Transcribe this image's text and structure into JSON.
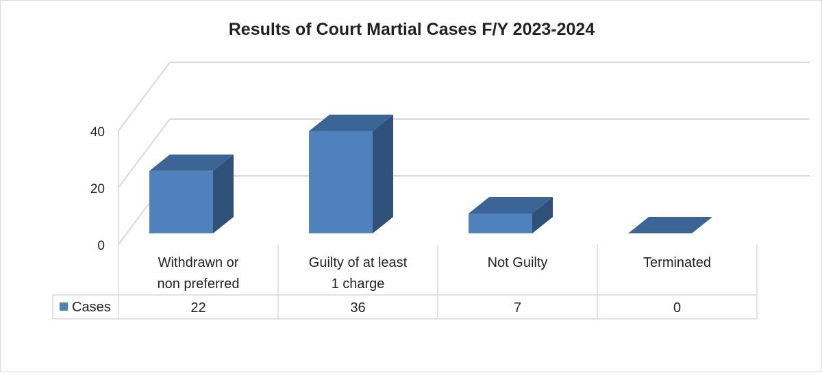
{
  "chart_data": {
    "type": "bar",
    "title": "Results of Court Martial Cases F/Y 2023-2024",
    "categories": [
      [
        "Withdrawn or",
        "non preferred"
      ],
      [
        "Guilty of at least",
        "1 charge"
      ],
      [
        "Not Guilty"
      ],
      [
        "Terminated"
      ]
    ],
    "series": [
      {
        "name": "Cases",
        "values": [
          22,
          36,
          7,
          0
        ]
      }
    ],
    "y_ticks": [
      0,
      20,
      40
    ],
    "ylim": [
      0,
      40
    ],
    "grid": true,
    "legend": "data-table-left",
    "three_d": true,
    "colors": {
      "front": "#4f81bd",
      "top": "#3a6594",
      "side": "#2f5079",
      "grid": "#d9d9d9",
      "table_border": "#d9d9d9"
    }
  }
}
